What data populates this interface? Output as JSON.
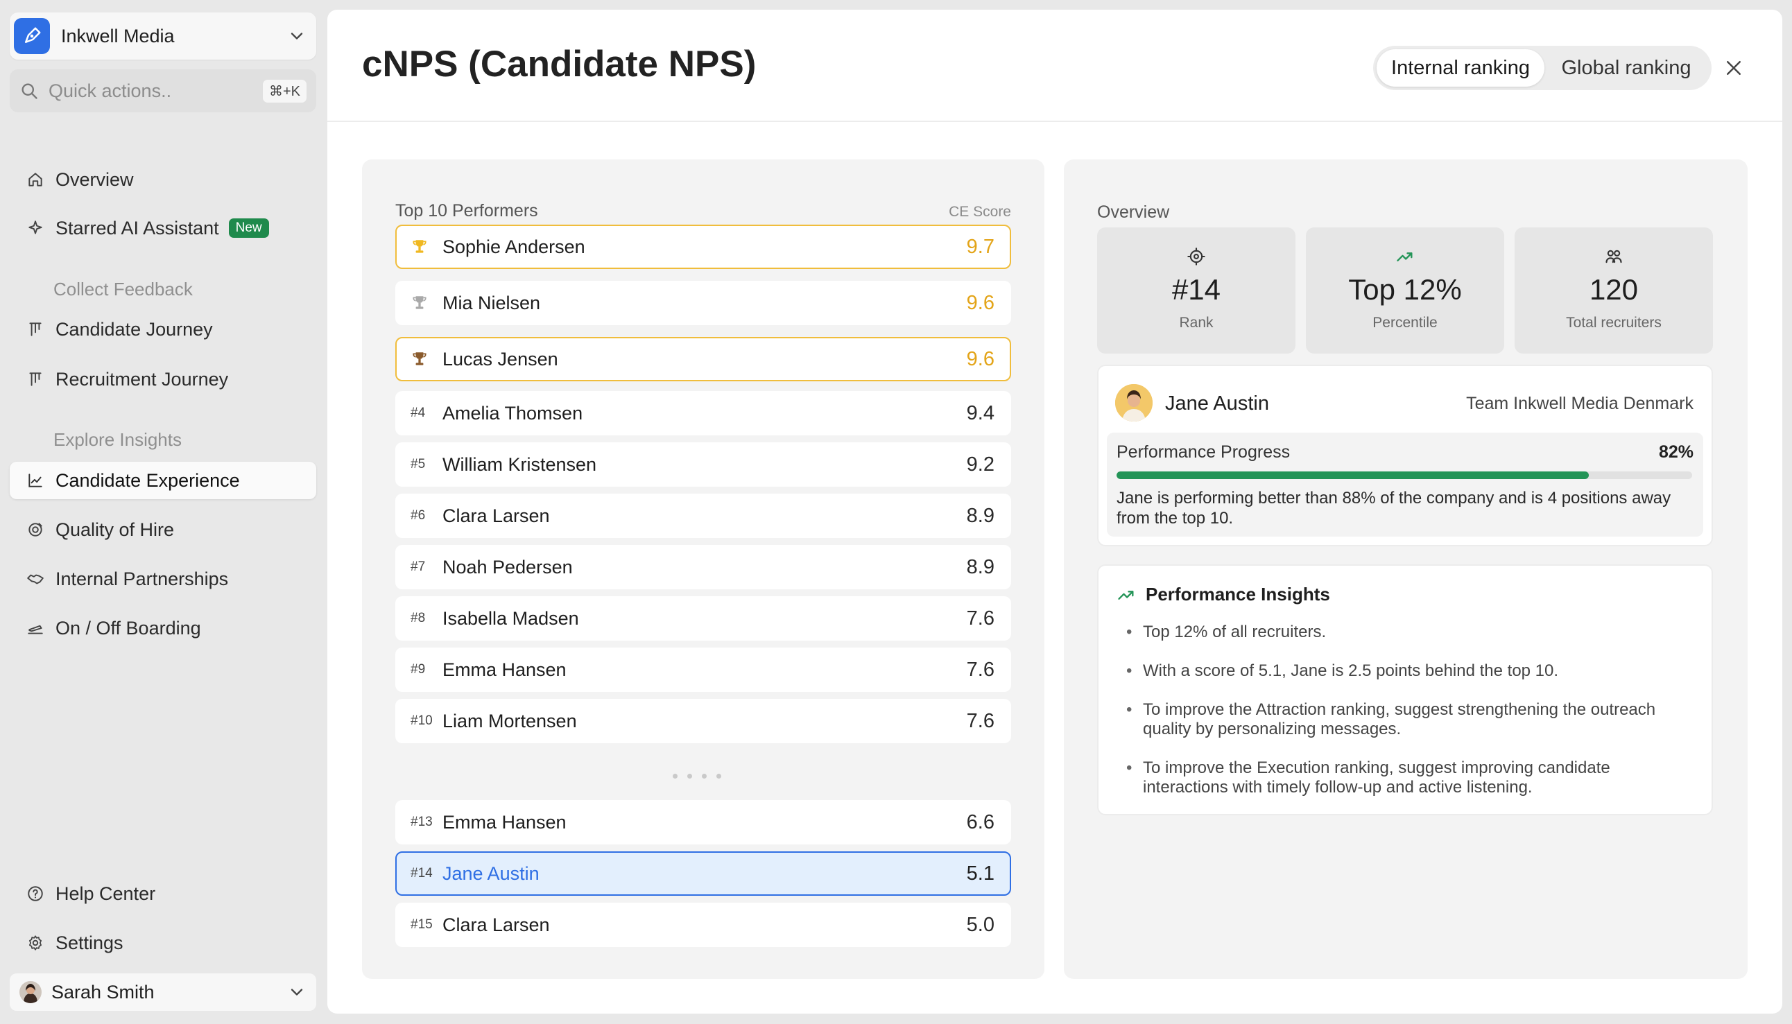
{
  "sidebar": {
    "workspace": "Inkwell Media",
    "search_placeholder": "Quick actions..",
    "shortcut": "⌘+K",
    "overview": "Overview",
    "assistant": "Starred AI Assistant",
    "assistant_badge": "New",
    "section_collect": "Collect Feedback",
    "candidate_journey": "Candidate Journey",
    "recruitment_journey": "Recruitment Journey",
    "section_explore": "Explore Insights",
    "candidate_experience": "Candidate Experience",
    "quality_of_hire": "Quality of Hire",
    "internal_partnerships": "Internal Partnerships",
    "onoff_boarding": "On / Off Boarding",
    "help_center": "Help Center",
    "settings": "Settings",
    "user_name": "Sarah Smith"
  },
  "header": {
    "title": "cNPS (Candidate NPS)",
    "toggle_internal": "Internal ranking",
    "toggle_global": "Global ranking"
  },
  "leaderboard": {
    "title": "Top 10 Performers",
    "score_label": "CE Score",
    "rows": [
      {
        "rank": "#1",
        "name": "Sophie Andersen",
        "score": "9.7",
        "medal": "gold"
      },
      {
        "rank": "#2",
        "name": "Mia Nielsen",
        "score": "9.6",
        "medal": "silver"
      },
      {
        "rank": "#3",
        "name": "Lucas Jensen",
        "score": "9.6",
        "medal": "bronze"
      },
      {
        "rank": "#4",
        "name": "Amelia Thomsen",
        "score": "9.4"
      },
      {
        "rank": "#5",
        "name": "William Kristensen",
        "score": "9.2"
      },
      {
        "rank": "#6",
        "name": "Clara Larsen",
        "score": "8.9"
      },
      {
        "rank": "#7",
        "name": "Noah Pedersen",
        "score": "8.9"
      },
      {
        "rank": "#8",
        "name": "Isabella Madsen",
        "score": "7.6"
      },
      {
        "rank": "#9",
        "name": "Emma Hansen",
        "score": "7.6"
      },
      {
        "rank": "#10",
        "name": "Liam Mortensen",
        "score": "7.6"
      }
    ],
    "nearby": [
      {
        "rank": "#13",
        "name": "Emma Hansen",
        "score": "6.6"
      },
      {
        "rank": "#14",
        "name": "Jane Austin",
        "score": "5.1",
        "current": true
      },
      {
        "rank": "#15",
        "name": "Clara Larsen",
        "score": "5.0"
      }
    ]
  },
  "overview": {
    "title": "Overview",
    "stats": [
      {
        "value": "#14",
        "label": "Rank",
        "icon": "target-icon"
      },
      {
        "value": "Top 12%",
        "label": "Percentile",
        "icon": "trend-up-icon"
      },
      {
        "value": "120",
        "label": "Total recruiters",
        "icon": "users-icon"
      }
    ],
    "profile": {
      "name": "Jane Austin",
      "team": "Team Inkwell Media Denmark",
      "progress_label": "Performance Progress",
      "progress_value": "82%",
      "progress_fraction": 0.82,
      "note": "Jane is performing better than 88% of the company and is 4 positions away from the top 10."
    },
    "insights": {
      "title": "Performance Insights",
      "items": [
        "Top 12% of all recruiters.",
        "With a score of 5.1, Jane is 2.5 points behind the top 10.",
        "To improve the Attraction ranking, suggest strengthening the outreach quality by personalizing messages.",
        "To improve the Execution ranking, suggest improving candidate interactions with timely follow-up and active listening."
      ]
    }
  },
  "colors": {
    "accent_blue": "#2f6fe4",
    "success_green": "#239457",
    "gold": "#f0bd3c",
    "amber_score": "#e3a418"
  }
}
